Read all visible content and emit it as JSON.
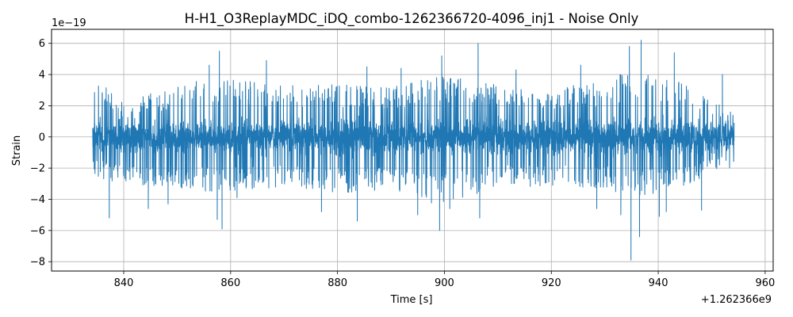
{
  "chart_data": {
    "type": "line",
    "title": "H-H1_O3ReplayMDC_iDQ_combo-1262366720-4096_inj1 - Noise Only",
    "xlabel": "Time [s]",
    "ylabel": "Strain",
    "y_scale_label": "1e−19",
    "x_offset_label": "+1.262366e9",
    "xlim": [
      826.5,
      961.5
    ],
    "ylim": [
      -8.6,
      6.9
    ],
    "x_ticks": [
      840,
      860,
      880,
      900,
      920,
      940,
      960
    ],
    "x_tick_labels": [
      "840",
      "860",
      "880",
      "900",
      "920",
      "940",
      "960"
    ],
    "y_ticks": [
      -8,
      -6,
      -4,
      -2,
      0,
      2,
      4,
      6
    ],
    "y_tick_labels": [
      "−8",
      "−6",
      "−4",
      "−2",
      "0",
      "2",
      "4",
      "6"
    ],
    "grid": true,
    "series": [
      {
        "color": "#1f77b4",
        "x_range": [
          834.2,
          954.2
        ],
        "typical_band": [
          -1.5,
          1.5
        ],
        "envelope_upper": [
          [
            834.2,
            3.6
          ],
          [
            840,
            2.6
          ],
          [
            848,
            3.0
          ],
          [
            858,
            4.0
          ],
          [
            870,
            3.4
          ],
          [
            880,
            3.4
          ],
          [
            890,
            3.2
          ],
          [
            899,
            4.0
          ],
          [
            910,
            3.4
          ],
          [
            920,
            3.2
          ],
          [
            930,
            3.6
          ],
          [
            937,
            4.6
          ],
          [
            945,
            3.4
          ],
          [
            954.2,
            1.6
          ]
        ],
        "envelope_lower": [
          [
            834.2,
            -2.6
          ],
          [
            840,
            -3.0
          ],
          [
            848,
            -3.2
          ],
          [
            858,
            -3.6
          ],
          [
            870,
            -3.2
          ],
          [
            880,
            -3.6
          ],
          [
            890,
            -3.4
          ],
          [
            899,
            -4.4
          ],
          [
            910,
            -3.2
          ],
          [
            920,
            -3.2
          ],
          [
            930,
            -3.4
          ],
          [
            937,
            -3.8
          ],
          [
            945,
            -3.2
          ],
          [
            954.2,
            -2.0
          ]
        ],
        "spikes": [
          [
            837.3,
            -5.2
          ],
          [
            844.6,
            -4.6
          ],
          [
            848.3,
            -4.3
          ],
          [
            856.0,
            4.6
          ],
          [
            857.5,
            -5.3
          ],
          [
            857.9,
            5.5
          ],
          [
            858.4,
            -5.9
          ],
          [
            861.2,
            -3.9
          ],
          [
            866.7,
            4.9
          ],
          [
            877.0,
            -4.8
          ],
          [
            883.7,
            -5.4
          ],
          [
            885.5,
            4.5
          ],
          [
            891.9,
            4.4
          ],
          [
            895.0,
            -5.0
          ],
          [
            899.1,
            -6.0
          ],
          [
            899.5,
            5.2
          ],
          [
            901.0,
            -4.6
          ],
          [
            906.3,
            6.0
          ],
          [
            906.6,
            -5.2
          ],
          [
            913.4,
            4.3
          ],
          [
            925.5,
            4.6
          ],
          [
            928.5,
            -4.6
          ],
          [
            933.0,
            -5.0
          ],
          [
            934.6,
            5.8
          ],
          [
            934.9,
            -7.9
          ],
          [
            936.5,
            -6.4
          ],
          [
            936.8,
            6.2
          ],
          [
            940.2,
            -5.1
          ],
          [
            941.5,
            -4.8
          ],
          [
            943.0,
            5.4
          ],
          [
            948.1,
            -4.7
          ],
          [
            952.0,
            4.0
          ]
        ]
      }
    ]
  }
}
